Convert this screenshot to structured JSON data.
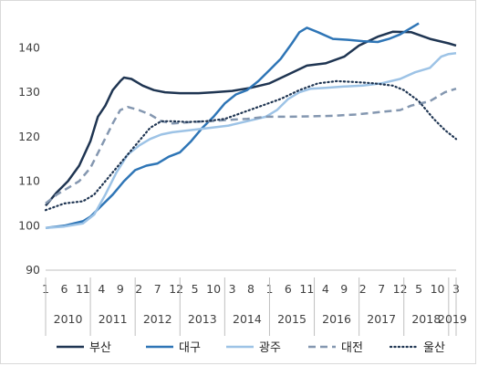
{
  "chart_data": {
    "type": "line",
    "title": "",
    "xlabel": "",
    "ylabel": "",
    "ylim": [
      90,
      145
    ],
    "yticks": [
      90,
      100,
      110,
      120,
      130,
      140
    ],
    "grid": false,
    "legend_position": "bottom",
    "x_start_year": 2010,
    "x_end": "2019-03",
    "month_ticks": [
      "1",
      "6",
      "11",
      "4",
      "9",
      "2",
      "7",
      "12",
      "5",
      "10",
      "3",
      "8",
      "1",
      "6",
      "11",
      "4",
      "9",
      "2",
      "7",
      "12",
      "5",
      "10",
      "3"
    ],
    "year_ticks": [
      "2010",
      "2011",
      "2012",
      "2013",
      "2014",
      "2015",
      "2016",
      "2017",
      "2018",
      "2019"
    ],
    "series": [
      {
        "name": "부산",
        "color": "#1f3552",
        "dash": "solid",
        "points": [
          [
            "2010-01",
            104.5
          ],
          [
            "2010-04",
            107.5
          ],
          [
            "2010-07",
            110.0
          ],
          [
            "2010-10",
            113.5
          ],
          [
            "2011-01",
            119.0
          ],
          [
            "2011-03",
            124.5
          ],
          [
            "2011-05",
            127.0
          ],
          [
            "2011-07",
            130.5
          ],
          [
            "2011-09",
            132.5
          ],
          [
            "2011-10",
            133.3
          ],
          [
            "2011-12",
            133.0
          ],
          [
            "2012-03",
            131.5
          ],
          [
            "2012-06",
            130.5
          ],
          [
            "2012-09",
            130.0
          ],
          [
            "2013-01",
            129.8
          ],
          [
            "2013-06",
            129.8
          ],
          [
            "2013-10",
            130.0
          ],
          [
            "2014-03",
            130.3
          ],
          [
            "2014-08",
            131.0
          ],
          [
            "2015-01",
            132.0
          ],
          [
            "2015-06",
            134.0
          ],
          [
            "2015-11",
            136.0
          ],
          [
            "2016-04",
            136.5
          ],
          [
            "2016-09",
            138.0
          ],
          [
            "2017-01",
            140.5
          ],
          [
            "2017-06",
            142.5
          ],
          [
            "2017-10",
            143.6
          ],
          [
            "2018-03",
            143.5
          ],
          [
            "2018-08",
            142.0
          ],
          [
            "2019-01",
            141.0
          ],
          [
            "2019-03",
            140.5
          ]
        ]
      },
      {
        "name": "대구",
        "color": "#2e75b6",
        "dash": "solid",
        "points": [
          [
            "2010-01",
            99.5
          ],
          [
            "2010-06",
            100.0
          ],
          [
            "2010-11",
            101.0
          ],
          [
            "2011-01",
            102.0
          ],
          [
            "2011-04",
            104.5
          ],
          [
            "2011-07",
            107.0
          ],
          [
            "2011-10",
            110.0
          ],
          [
            "2012-01",
            112.5
          ],
          [
            "2012-04",
            113.5
          ],
          [
            "2012-07",
            114.0
          ],
          [
            "2012-10",
            115.5
          ],
          [
            "2013-01",
            116.5
          ],
          [
            "2013-04",
            119.0
          ],
          [
            "2013-07",
            122.0
          ],
          [
            "2013-10",
            124.5
          ],
          [
            "2014-01",
            127.5
          ],
          [
            "2014-04",
            129.5
          ],
          [
            "2014-07",
            130.5
          ],
          [
            "2014-10",
            132.5
          ],
          [
            "2015-01",
            135.0
          ],
          [
            "2015-04",
            137.5
          ],
          [
            "2015-07",
            141.0
          ],
          [
            "2015-09",
            143.5
          ],
          [
            "2015-11",
            144.5
          ],
          [
            "2016-02",
            143.5
          ],
          [
            "2016-06",
            142.0
          ],
          [
            "2016-10",
            141.8
          ],
          [
            "2017-02",
            141.5
          ],
          [
            "2017-06",
            141.3
          ],
          [
            "2017-09",
            142.0
          ],
          [
            "2017-12",
            143.0
          ],
          [
            "2018-03",
            144.5
          ],
          [
            "2018-05",
            145.5
          ]
        ]
      },
      {
        "name": "광주",
        "color": "#9dc3e6",
        "dash": "solid",
        "points": [
          [
            "2010-01",
            99.5
          ],
          [
            "2010-06",
            99.8
          ],
          [
            "2010-11",
            100.5
          ],
          [
            "2011-02",
            102.5
          ],
          [
            "2011-05",
            107.0
          ],
          [
            "2011-08",
            112.0
          ],
          [
            "2011-11",
            116.0
          ],
          [
            "2012-02",
            118.0
          ],
          [
            "2012-05",
            119.5
          ],
          [
            "2012-08",
            120.5
          ],
          [
            "2012-11",
            121.0
          ],
          [
            "2013-04",
            121.5
          ],
          [
            "2013-09",
            122.0
          ],
          [
            "2014-02",
            122.5
          ],
          [
            "2014-07",
            123.5
          ],
          [
            "2014-12",
            124.5
          ],
          [
            "2015-03",
            126.0
          ],
          [
            "2015-06",
            128.5
          ],
          [
            "2015-09",
            130.0
          ],
          [
            "2015-12",
            130.8
          ],
          [
            "2016-04",
            131.0
          ],
          [
            "2016-09",
            131.3
          ],
          [
            "2017-02",
            131.5
          ],
          [
            "2017-07",
            132.0
          ],
          [
            "2017-12",
            133.0
          ],
          [
            "2018-04",
            134.5
          ],
          [
            "2018-08",
            135.5
          ],
          [
            "2018-11",
            138.0
          ],
          [
            "2019-01",
            138.6
          ],
          [
            "2019-03",
            138.8
          ]
        ]
      },
      {
        "name": "대전",
        "color": "#8497b0",
        "dash": "dashed",
        "points": [
          [
            "2010-01",
            105.0
          ],
          [
            "2010-04",
            107.0
          ],
          [
            "2010-07",
            108.5
          ],
          [
            "2010-10",
            110.0
          ],
          [
            "2011-01",
            113.0
          ],
          [
            "2011-04",
            118.0
          ],
          [
            "2011-07",
            123.0
          ],
          [
            "2011-09",
            126.0
          ],
          [
            "2011-11",
            126.7
          ],
          [
            "2012-02",
            126.0
          ],
          [
            "2012-05",
            125.0
          ],
          [
            "2012-08",
            123.5
          ],
          [
            "2012-11",
            123.0
          ],
          [
            "2013-04",
            123.3
          ],
          [
            "2013-09",
            123.5
          ],
          [
            "2014-02",
            123.8
          ],
          [
            "2014-07",
            124.0
          ],
          [
            "2014-12",
            124.5
          ],
          [
            "2015-06",
            124.5
          ],
          [
            "2015-12",
            124.6
          ],
          [
            "2016-06",
            124.7
          ],
          [
            "2016-12",
            125.0
          ],
          [
            "2017-06",
            125.5
          ],
          [
            "2017-12",
            126.0
          ],
          [
            "2018-03",
            127.0
          ],
          [
            "2018-08",
            128.0
          ],
          [
            "2018-12",
            130.0
          ],
          [
            "2019-03",
            130.8
          ]
        ]
      },
      {
        "name": "울산",
        "color": "#1f3552",
        "dash": "dotted",
        "points": [
          [
            "2010-01",
            103.5
          ],
          [
            "2010-06",
            105.0
          ],
          [
            "2010-11",
            105.5
          ],
          [
            "2011-02",
            107.0
          ],
          [
            "2011-05",
            110.0
          ],
          [
            "2011-08",
            113.0
          ],
          [
            "2011-11",
            116.0
          ],
          [
            "2012-02",
            119.0
          ],
          [
            "2012-05",
            122.0
          ],
          [
            "2012-08",
            123.5
          ],
          [
            "2012-11",
            123.5
          ],
          [
            "2013-03",
            123.3
          ],
          [
            "2013-08",
            123.5
          ],
          [
            "2014-01",
            124.0
          ],
          [
            "2014-06",
            125.5
          ],
          [
            "2014-11",
            127.0
          ],
          [
            "2015-04",
            128.5
          ],
          [
            "2015-09",
            130.5
          ],
          [
            "2016-02",
            132.0
          ],
          [
            "2016-07",
            132.5
          ],
          [
            "2016-12",
            132.3
          ],
          [
            "2017-05",
            132.0
          ],
          [
            "2017-10",
            131.5
          ],
          [
            "2018-01",
            130.5
          ],
          [
            "2018-05",
            128.0
          ],
          [
            "2018-09",
            124.0
          ],
          [
            "2018-12",
            121.5
          ],
          [
            "2019-03",
            119.5
          ]
        ]
      }
    ]
  }
}
